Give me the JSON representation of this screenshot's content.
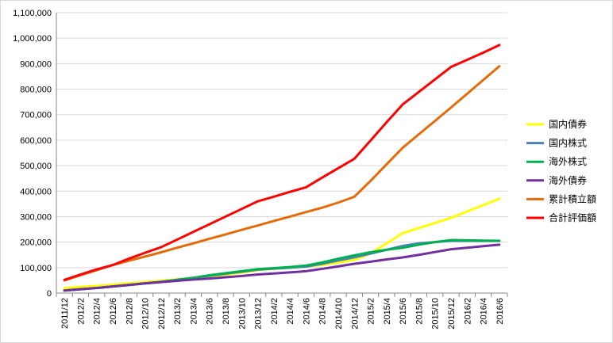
{
  "chart_data": {
    "type": "line",
    "title": "",
    "xlabel": "",
    "ylabel": "",
    "ylim": [
      0,
      1100000
    ],
    "y_tick_step": 100000,
    "grid": {
      "y": true,
      "x": false
    },
    "legend_position": "right",
    "categories": [
      "2011/12",
      "2012/2",
      "2012/4",
      "2012/6",
      "2012/8",
      "2012/10",
      "2012/12",
      "2013/2",
      "2013/4",
      "2013/6",
      "2013/8",
      "2013/10",
      "2013/12",
      "2014/2",
      "2014/4",
      "2014/6",
      "2014/8",
      "2014/10",
      "2014/12",
      "2015/2",
      "2015/4",
      "2015/6",
      "2015/8",
      "2015/10",
      "2015/12",
      "2016/2",
      "2016/4",
      "2016/6"
    ],
    "y_tick_labels": [
      "0",
      "100,000",
      "200,000",
      "300,000",
      "400,000",
      "500,000",
      "600,000",
      "700,000",
      "800,000",
      "900,000",
      "1,000,000",
      "1,100,000"
    ],
    "series": [
      {
        "name": "国内債券",
        "color": "#ffff00",
        "values": [
          20000,
          24000,
          28000,
          33000,
          38000,
          43000,
          48000,
          54000,
          60000,
          66000,
          72000,
          80000,
          90000,
          95000,
          100000,
          105000,
          110000,
          120000,
          130000,
          155000,
          195000,
          235000,
          255000,
          275000,
          295000,
          320000,
          345000,
          370000
        ]
      },
      {
        "name": "国内株式",
        "color": "#4f81bd",
        "values": [
          10000,
          15000,
          20000,
          26000,
          32000,
          38000,
          44000,
          52000,
          60000,
          68000,
          76000,
          84000,
          92000,
          96000,
          100000,
          104000,
          115000,
          128000,
          140000,
          155000,
          170000,
          185000,
          195000,
          200000,
          205000,
          205000,
          205000,
          205000
        ]
      },
      {
        "name": "海外株式",
        "color": "#00b050",
        "values": [
          10000,
          15000,
          20000,
          26000,
          32000,
          38000,
          44000,
          52000,
          60000,
          70000,
          78000,
          86000,
          94000,
          98000,
          102000,
          108000,
          120000,
          135000,
          148000,
          160000,
          170000,
          178000,
          190000,
          200000,
          208000,
          207000,
          206000,
          205000
        ]
      },
      {
        "name": "海外債券",
        "color": "#7030a0",
        "values": [
          10000,
          15000,
          20000,
          26000,
          32000,
          38000,
          43000,
          48000,
          53000,
          57000,
          62000,
          67000,
          73000,
          77000,
          81000,
          86000,
          95000,
          105000,
          115000,
          123000,
          132000,
          140000,
          150000,
          161000,
          172000,
          178000,
          184000,
          190000
        ]
      },
      {
        "name": "累計積立額",
        "color": "#e36c09",
        "values": [
          50000,
          70000,
          90000,
          110000,
          127000,
          143000,
          160000,
          178000,
          195000,
          213000,
          230000,
          248000,
          265000,
          283000,
          300000,
          318000,
          335000,
          355000,
          378000,
          440000,
          505000,
          570000,
          623000,
          675000,
          728000,
          782000,
          836000,
          890000
        ]
      },
      {
        "name": "合計評価額",
        "color": "#ff0000",
        "values": [
          52000,
          73000,
          93000,
          110000,
          135000,
          158000,
          180000,
          210000,
          240000,
          270000,
          300000,
          330000,
          360000,
          378000,
          397000,
          415000,
          453000,
          490000,
          527000,
          598000,
          670000,
          740000,
          789000,
          838000,
          887000,
          915000,
          943000,
          973000
        ]
      }
    ]
  }
}
